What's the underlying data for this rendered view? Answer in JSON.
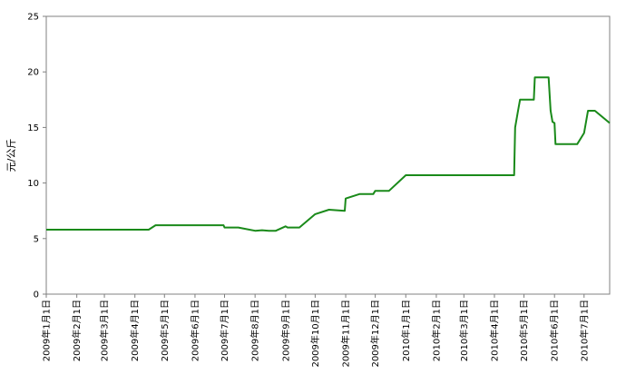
{
  "chart_data": {
    "type": "line",
    "title": "",
    "xlabel": "",
    "ylabel": "元/公斤",
    "ylim": [
      0,
      25
    ],
    "yticks": [
      0,
      5,
      10,
      15,
      20,
      25
    ],
    "xlim": [
      "2009-01-01",
      "2010-07-27"
    ],
    "xtick_labels": [
      {
        "date": "2009-01-01",
        "label": "2009年1月1日"
      },
      {
        "date": "2009-02-01",
        "label": "2009年2月1日"
      },
      {
        "date": "2009-03-01",
        "label": "2009年3月1日"
      },
      {
        "date": "2009-04-01",
        "label": "2009年4月1日"
      },
      {
        "date": "2009-05-01",
        "label": "2009年5月1日"
      },
      {
        "date": "2009-06-01",
        "label": "2009年6月1日"
      },
      {
        "date": "2009-07-01",
        "label": "2009年7月1日"
      },
      {
        "date": "2009-08-01",
        "label": "2009年8月1日"
      },
      {
        "date": "2009-09-01",
        "label": "2009年9月1日"
      },
      {
        "date": "2009-10-01",
        "label": "2009年10月1日"
      },
      {
        "date": "2009-11-01",
        "label": "2009年11月1日"
      },
      {
        "date": "2009-12-01",
        "label": "2009年12月1日"
      },
      {
        "date": "2010-01-01",
        "label": "2010年1月1日"
      },
      {
        "date": "2010-02-01",
        "label": "2010年2月1日"
      },
      {
        "date": "2010-03-01",
        "label": "2010年3月1日"
      },
      {
        "date": "2010-04-01",
        "label": "2010年4月1日"
      },
      {
        "date": "2010-05-01",
        "label": "2010年5月1日"
      },
      {
        "date": "2010-06-01",
        "label": "2010年6月1日"
      },
      {
        "date": "2010-07-01",
        "label": "2010年7月1日"
      }
    ],
    "grid": false,
    "legend": "none",
    "series": [
      {
        "color": "#1a8a1a",
        "points": [
          [
            "2009-01-01",
            5.8
          ],
          [
            "2009-04-15",
            5.8
          ],
          [
            "2009-04-22",
            6.2
          ],
          [
            "2009-06-30",
            6.2
          ],
          [
            "2009-07-01",
            6.0
          ],
          [
            "2009-07-15",
            6.0
          ],
          [
            "2009-08-01",
            5.7
          ],
          [
            "2009-08-08",
            5.75
          ],
          [
            "2009-08-15",
            5.7
          ],
          [
            "2009-08-22",
            5.7
          ],
          [
            "2009-09-01",
            6.1
          ],
          [
            "2009-09-03",
            6.0
          ],
          [
            "2009-09-15",
            6.0
          ],
          [
            "2009-10-01",
            7.2
          ],
          [
            "2009-10-15",
            7.6
          ],
          [
            "2009-10-31",
            7.5
          ],
          [
            "2009-11-01",
            8.6
          ],
          [
            "2009-11-15",
            9.0
          ],
          [
            "2009-11-29",
            9.0
          ],
          [
            "2009-12-01",
            9.3
          ],
          [
            "2009-12-15",
            9.3
          ],
          [
            "2010-01-01",
            10.7
          ],
          [
            "2010-04-21",
            10.7
          ],
          [
            "2010-04-22",
            15.0
          ],
          [
            "2010-04-25",
            16.5
          ],
          [
            "2010-04-27",
            17.5
          ],
          [
            "2010-05-11",
            17.5
          ],
          [
            "2010-05-12",
            19.5
          ],
          [
            "2010-05-26",
            19.5
          ],
          [
            "2010-05-28",
            16.5
          ],
          [
            "2010-05-30",
            15.5
          ],
          [
            "2010-06-01",
            15.4
          ],
          [
            "2010-06-02",
            13.5
          ],
          [
            "2010-06-24",
            13.5
          ],
          [
            "2010-07-01",
            14.5
          ],
          [
            "2010-07-05",
            16.5
          ],
          [
            "2010-07-12",
            16.5
          ],
          [
            "2010-07-27",
            15.4
          ]
        ]
      }
    ]
  }
}
